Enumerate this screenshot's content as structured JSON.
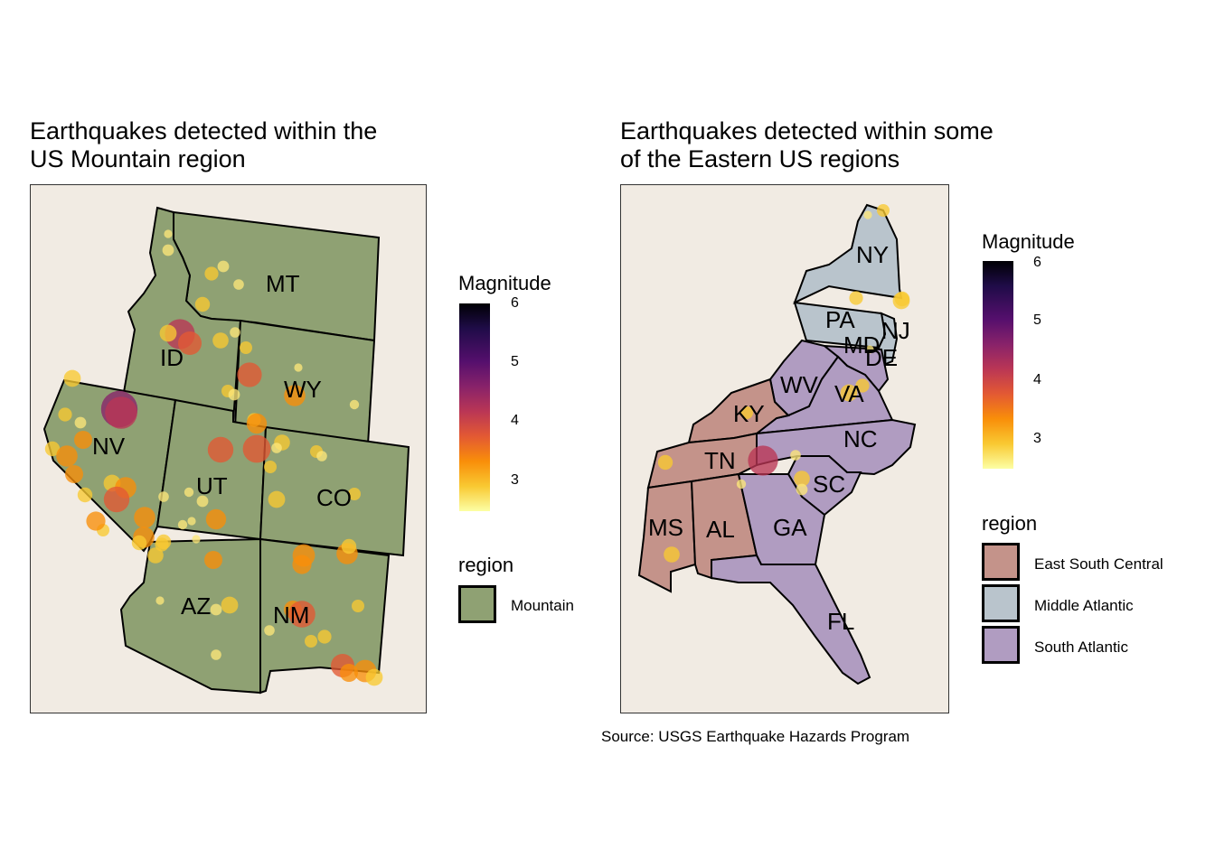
{
  "left": {
    "title": "Earthquakes detected within the\nUS Mountain region",
    "state_labels": [
      "MT",
      "ID",
      "WY",
      "NV",
      "UT",
      "CO",
      "AZ",
      "NM"
    ],
    "magnitude_legend": {
      "title": "Magnitude",
      "ticks": [
        "6",
        "5",
        "4",
        "3"
      ]
    },
    "region_legend": {
      "title": "region",
      "items": [
        {
          "label": "Mountain",
          "color": "#8fa173"
        }
      ]
    }
  },
  "right": {
    "title": "Earthquakes detected within some\nof the Eastern US regions",
    "state_labels": [
      "NY",
      "PA",
      "NJ",
      "MD",
      "DE",
      "WV",
      "VA",
      "KY",
      "NC",
      "TN",
      "SC",
      "MS",
      "AL",
      "GA",
      "FL"
    ],
    "magnitude_legend": {
      "title": "Magnitude",
      "ticks": [
        "6",
        "5",
        "4",
        "3"
      ]
    },
    "region_legend": {
      "title": "region",
      "items": [
        {
          "label": "East South Central",
          "color": "#c4938a"
        },
        {
          "label": "Middle Atlantic",
          "color": "#b9c4cc"
        },
        {
          "label": "South Atlantic",
          "color": "#b09cc1"
        }
      ]
    }
  },
  "caption": "Source: USGS Earthquake Hazards Program",
  "colors": {
    "panel_bg": "#f1ebe3",
    "mountain": "#8fa173",
    "esc": "#c4938a",
    "matl": "#b9c4cc",
    "satl": "#b09cc1"
  }
}
